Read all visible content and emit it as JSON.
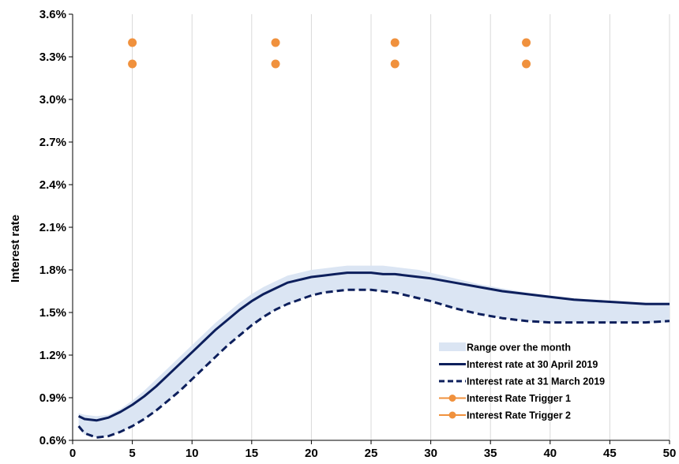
{
  "chart_data": {
    "type": "line",
    "title": "",
    "ylabel": "Interest rate",
    "xlabel": "",
    "xlim": [
      0,
      50
    ],
    "ylim": [
      0.6,
      3.6
    ],
    "x_ticks": [
      "0",
      "5",
      "10",
      "15",
      "20",
      "25",
      "30",
      "35",
      "40",
      "45",
      "50"
    ],
    "y_ticks": [
      "3.6%",
      "3.3%",
      "3.0%",
      "2.7%",
      "2.4%",
      "2.1%",
      "1.8%",
      "1.5%",
      "1.2%",
      "0.9%",
      "0.6%"
    ],
    "grid": "vertical",
    "legend_position": "bottom-right",
    "range_band": {
      "name": "Range over the month",
      "color": "#dbe5f3",
      "x": [
        0.5,
        1,
        2,
        3,
        4,
        5,
        6,
        7,
        8,
        9,
        10,
        11,
        12,
        13,
        14,
        15,
        16,
        17,
        18,
        19,
        20,
        21,
        22,
        23,
        24,
        25,
        26,
        27,
        28,
        29,
        30,
        32,
        34,
        36,
        38,
        40,
        42,
        44,
        46,
        48,
        50
      ],
      "upper": [
        0.79,
        0.78,
        0.77,
        0.78,
        0.82,
        0.88,
        0.95,
        1.03,
        1.11,
        1.19,
        1.27,
        1.35,
        1.43,
        1.5,
        1.57,
        1.63,
        1.68,
        1.72,
        1.76,
        1.78,
        1.8,
        1.81,
        1.82,
        1.83,
        1.83,
        1.83,
        1.83,
        1.82,
        1.81,
        1.8,
        1.78,
        1.74,
        1.7,
        1.67,
        1.64,
        1.62,
        1.6,
        1.59,
        1.58,
        1.57,
        1.57
      ],
      "lower": [
        0.69,
        0.64,
        0.62,
        0.63,
        0.66,
        0.7,
        0.75,
        0.81,
        0.88,
        0.95,
        1.03,
        1.11,
        1.19,
        1.27,
        1.34,
        1.41,
        1.47,
        1.52,
        1.56,
        1.59,
        1.62,
        1.64,
        1.65,
        1.66,
        1.66,
        1.66,
        1.65,
        1.64,
        1.62,
        1.6,
        1.58,
        1.53,
        1.49,
        1.46,
        1.44,
        1.43,
        1.43,
        1.43,
        1.43,
        1.43,
        1.43
      ]
    },
    "series": [
      {
        "name": "Interest rate at 30 April 2019",
        "style": "solid",
        "color": "#0d1f5c",
        "x": [
          0.5,
          1,
          2,
          3,
          4,
          5,
          6,
          7,
          8,
          9,
          10,
          11,
          12,
          13,
          14,
          15,
          16,
          17,
          18,
          19,
          20,
          21,
          22,
          23,
          24,
          25,
          26,
          27,
          28,
          29,
          30,
          32,
          34,
          36,
          38,
          40,
          42,
          44,
          46,
          48,
          50
        ],
        "values": [
          0.77,
          0.75,
          0.74,
          0.76,
          0.8,
          0.85,
          0.91,
          0.98,
          1.06,
          1.14,
          1.22,
          1.3,
          1.38,
          1.45,
          1.52,
          1.58,
          1.63,
          1.67,
          1.71,
          1.73,
          1.75,
          1.76,
          1.77,
          1.78,
          1.78,
          1.78,
          1.77,
          1.77,
          1.76,
          1.75,
          1.74,
          1.71,
          1.68,
          1.65,
          1.63,
          1.61,
          1.59,
          1.58,
          1.57,
          1.56,
          1.56
        ]
      },
      {
        "name": "Interest rate at 31 March 2019",
        "style": "dashed",
        "color": "#0d1f5c",
        "x": [
          0.5,
          1,
          2,
          3,
          4,
          5,
          6,
          7,
          8,
          9,
          10,
          11,
          12,
          13,
          14,
          15,
          16,
          17,
          18,
          19,
          20,
          21,
          22,
          23,
          24,
          25,
          26,
          27,
          28,
          29,
          30,
          32,
          34,
          36,
          38,
          40,
          42,
          44,
          46,
          48,
          50
        ],
        "values": [
          0.7,
          0.65,
          0.62,
          0.63,
          0.66,
          0.7,
          0.75,
          0.81,
          0.88,
          0.95,
          1.03,
          1.11,
          1.19,
          1.27,
          1.34,
          1.41,
          1.47,
          1.52,
          1.56,
          1.59,
          1.62,
          1.64,
          1.65,
          1.66,
          1.66,
          1.66,
          1.65,
          1.64,
          1.62,
          1.6,
          1.58,
          1.53,
          1.49,
          1.46,
          1.44,
          1.43,
          1.43,
          1.43,
          1.43,
          1.43,
          1.44
        ]
      }
    ],
    "markers": [
      {
        "name": "Interest Rate Trigger 1",
        "color": "#f0913d",
        "x": [
          5,
          17,
          27,
          38
        ],
        "values": [
          3.25,
          3.25,
          3.25,
          3.25
        ]
      },
      {
        "name": "Interest Rate Trigger 2",
        "color": "#f0913d",
        "x": [
          5,
          17,
          27,
          38
        ],
        "values": [
          3.4,
          3.4,
          3.4,
          3.4
        ]
      }
    ]
  }
}
